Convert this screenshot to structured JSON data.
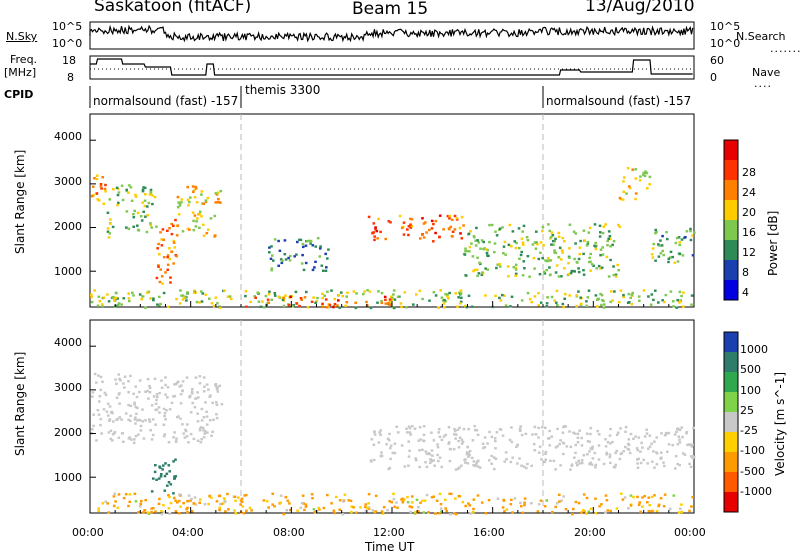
{
  "header": {
    "site": "Saskatoon (fitACF)",
    "beam": "Beam 15",
    "date": "13/Aug/2010"
  },
  "top_panels": {
    "nsky_label": "N.Sky",
    "nsky_ticks": [
      "10^5",
      "10^0"
    ],
    "nsearch_label": "N.Search",
    "nsearch_ticks": [
      "10^5",
      "10^0"
    ],
    "freq_label_1": "Freq.",
    "freq_label_2": "[MHz]",
    "freq_ticks": [
      "18",
      "8"
    ],
    "nave_label": "Nave",
    "nave_ticks": [
      "60",
      "0"
    ],
    "cpid_label": "CPID",
    "cpid_segments": [
      {
        "text": "normalsound (fast) -157",
        "start_hour": 0,
        "end_hour": 6
      },
      {
        "text": "themis 3300",
        "start_hour": 6,
        "end_hour": 18
      },
      {
        "text": "normalsound (fast) -157",
        "start_hour": 18,
        "end_hour": 24
      }
    ]
  },
  "power_panel": {
    "ylabel": "Slant Range [km]",
    "yticks": [
      "4000",
      "3000",
      "2000",
      "1000"
    ],
    "colorbar_label": "Power [dB]",
    "colorbar_ticks": [
      "28",
      "24",
      "20",
      "16",
      "12",
      "8",
      "4"
    ],
    "colorbar_colors": [
      "#e60000",
      "#ff3300",
      "#ff8000",
      "#ffcc00",
      "#7ec850",
      "#2e8b57",
      "#1a3fb0",
      "#0000e0"
    ]
  },
  "velocity_panel": {
    "ylabel": "Slant Range [km]",
    "yticks": [
      "4000",
      "3000",
      "2000",
      "1000"
    ],
    "colorbar_label": "Velocity [m s^-1]",
    "colorbar_ticks": [
      "1000",
      "500",
      "100",
      "25",
      "-25",
      "-100",
      "-500",
      "-1000"
    ],
    "colorbar_colors": [
      "#1a3fb0",
      "#2e7d6b",
      "#2fa84f",
      "#7ed348",
      "#c8c8c8",
      "#ffd000",
      "#ff9a00",
      "#ff5a00",
      "#e60000"
    ]
  },
  "x_axis": {
    "label": "Time UT",
    "ticks": [
      "00:00",
      "04:00",
      "08:00",
      "12:00",
      "16:00",
      "20:00",
      "00:00"
    ]
  },
  "chart_data": {
    "type": "heatmap",
    "x_range_hours": [
      0,
      24
    ],
    "y_range_km": [
      180,
      4600
    ],
    "mode_change_hours": [
      6,
      18
    ],
    "power_regions": [
      {
        "t0": 0.0,
        "t1": 0.6,
        "r0": 2500,
        "r1": 3400,
        "power_db": 22
      },
      {
        "t0": 0.6,
        "t1": 2.6,
        "r0": 1800,
        "r1": 3000,
        "power_db": 14
      },
      {
        "t0": 2.6,
        "t1": 3.4,
        "r0": 700,
        "r1": 2200,
        "power_db": 22
      },
      {
        "t0": 3.4,
        "t1": 5.2,
        "r0": 1800,
        "r1": 3000,
        "power_db": 18
      },
      {
        "t0": 0.0,
        "t1": 24.0,
        "r0": 180,
        "r1": 600,
        "power_db": 14
      },
      {
        "t0": 6.0,
        "t1": 12.0,
        "r0": 200,
        "r1": 450,
        "power_db": 24
      },
      {
        "t0": 7.0,
        "t1": 9.5,
        "r0": 1000,
        "r1": 1800,
        "power_db": 10
      },
      {
        "t0": 11.0,
        "t1": 14.8,
        "r0": 1700,
        "r1": 2300,
        "power_db": 24
      },
      {
        "t0": 14.8,
        "t1": 21.0,
        "r0": 900,
        "r1": 2100,
        "power_db": 14
      },
      {
        "t0": 21.0,
        "t1": 22.2,
        "r0": 2600,
        "r1": 3400,
        "power_db": 18
      },
      {
        "t0": 22.2,
        "t1": 24.0,
        "r0": 1200,
        "r1": 2000,
        "power_db": 12
      }
    ],
    "velocity_regions": [
      {
        "t0": 0.0,
        "t1": 5.2,
        "r0": 1800,
        "r1": 3400,
        "velocity": 0
      },
      {
        "t0": 2.4,
        "t1": 3.4,
        "r0": 600,
        "r1": 1500,
        "velocity": 800
      },
      {
        "t0": 0.0,
        "t1": 24.0,
        "r0": 180,
        "r1": 650,
        "velocity": -150
      },
      {
        "t0": 11.0,
        "t1": 24.0,
        "r0": 1200,
        "r1": 2200,
        "velocity": 0
      }
    ]
  }
}
